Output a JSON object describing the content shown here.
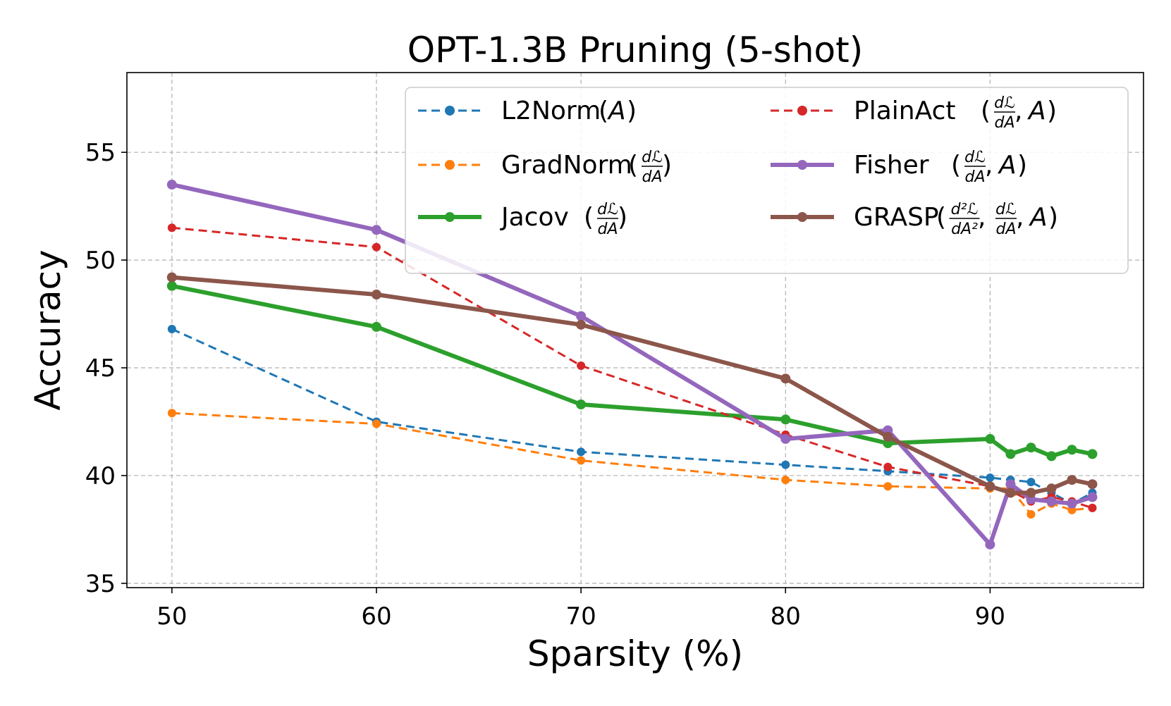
{
  "chart_data": {
    "type": "line",
    "title": "OPT-1.3B Pruning (5-shot)",
    "xlabel": "Sparsity (%)",
    "ylabel": "Accuracy",
    "xlim": [
      47.8,
      97.5
    ],
    "ylim": [
      34.8,
      58.7
    ],
    "xticks": [
      50,
      60,
      70,
      80,
      90
    ],
    "yticks": [
      35,
      40,
      45,
      50,
      55
    ],
    "grid": true,
    "legend_position": "top-right",
    "x": [
      50,
      60,
      70,
      80,
      85,
      90,
      91,
      92,
      93,
      94,
      95
    ],
    "series": [
      {
        "name": "L2Norm (A)",
        "legend_base": "L2Norm",
        "legend_frac": "",
        "legend_tail": "A",
        "color": "#1f77b4",
        "style": "dashed",
        "values": [
          46.8,
          42.5,
          41.1,
          40.5,
          40.2,
          39.9,
          39.8,
          39.7,
          39.2,
          38.7,
          39.2
        ]
      },
      {
        "name": "GradNorm (dℒ/dA)",
        "legend_base": "GradNorm",
        "legend_frac": "d1",
        "legend_tail": "",
        "color": "#ff7f0e",
        "style": "dashed",
        "values": [
          42.9,
          42.4,
          40.7,
          39.8,
          39.5,
          39.4,
          39.4,
          38.2,
          38.7,
          38.4,
          38.5
        ]
      },
      {
        "name": "Jacov (dℒ/dA)",
        "legend_base": "Jacov",
        "legend_frac": "d1",
        "legend_tail": "",
        "color": "#2ca02c",
        "style": "solid",
        "values": [
          48.8,
          46.9,
          43.3,
          42.6,
          41.5,
          41.7,
          41.0,
          41.3,
          40.9,
          41.2,
          41.0
        ]
      },
      {
        "name": "PlainAct (dℒ/dA, A)",
        "legend_base": "PlainAct",
        "legend_frac": "d1",
        "legend_tail": "A",
        "color": "#d62728",
        "style": "dashed",
        "values": [
          51.5,
          50.6,
          45.1,
          41.9,
          40.4,
          39.5,
          39.3,
          38.8,
          39.0,
          38.8,
          38.5
        ]
      },
      {
        "name": "Fisher (dℒ/dA, A)",
        "legend_base": "Fisher",
        "legend_frac": "d1",
        "legend_tail": "A",
        "color": "#9467bd",
        "style": "solid",
        "values": [
          53.5,
          51.4,
          47.4,
          41.7,
          42.1,
          36.8,
          39.6,
          38.9,
          38.8,
          38.7,
          39.0
        ]
      },
      {
        "name": "GRASP (d²ℒ/dA², dℒ/dA, A)",
        "legend_base": "GRASP",
        "legend_frac": "d2",
        "legend_tail": "A",
        "color": "#8c564b",
        "style": "solid",
        "values": [
          49.2,
          48.4,
          47.0,
          44.5,
          41.8,
          39.5,
          39.2,
          39.2,
          39.4,
          39.8,
          39.6
        ]
      }
    ]
  }
}
